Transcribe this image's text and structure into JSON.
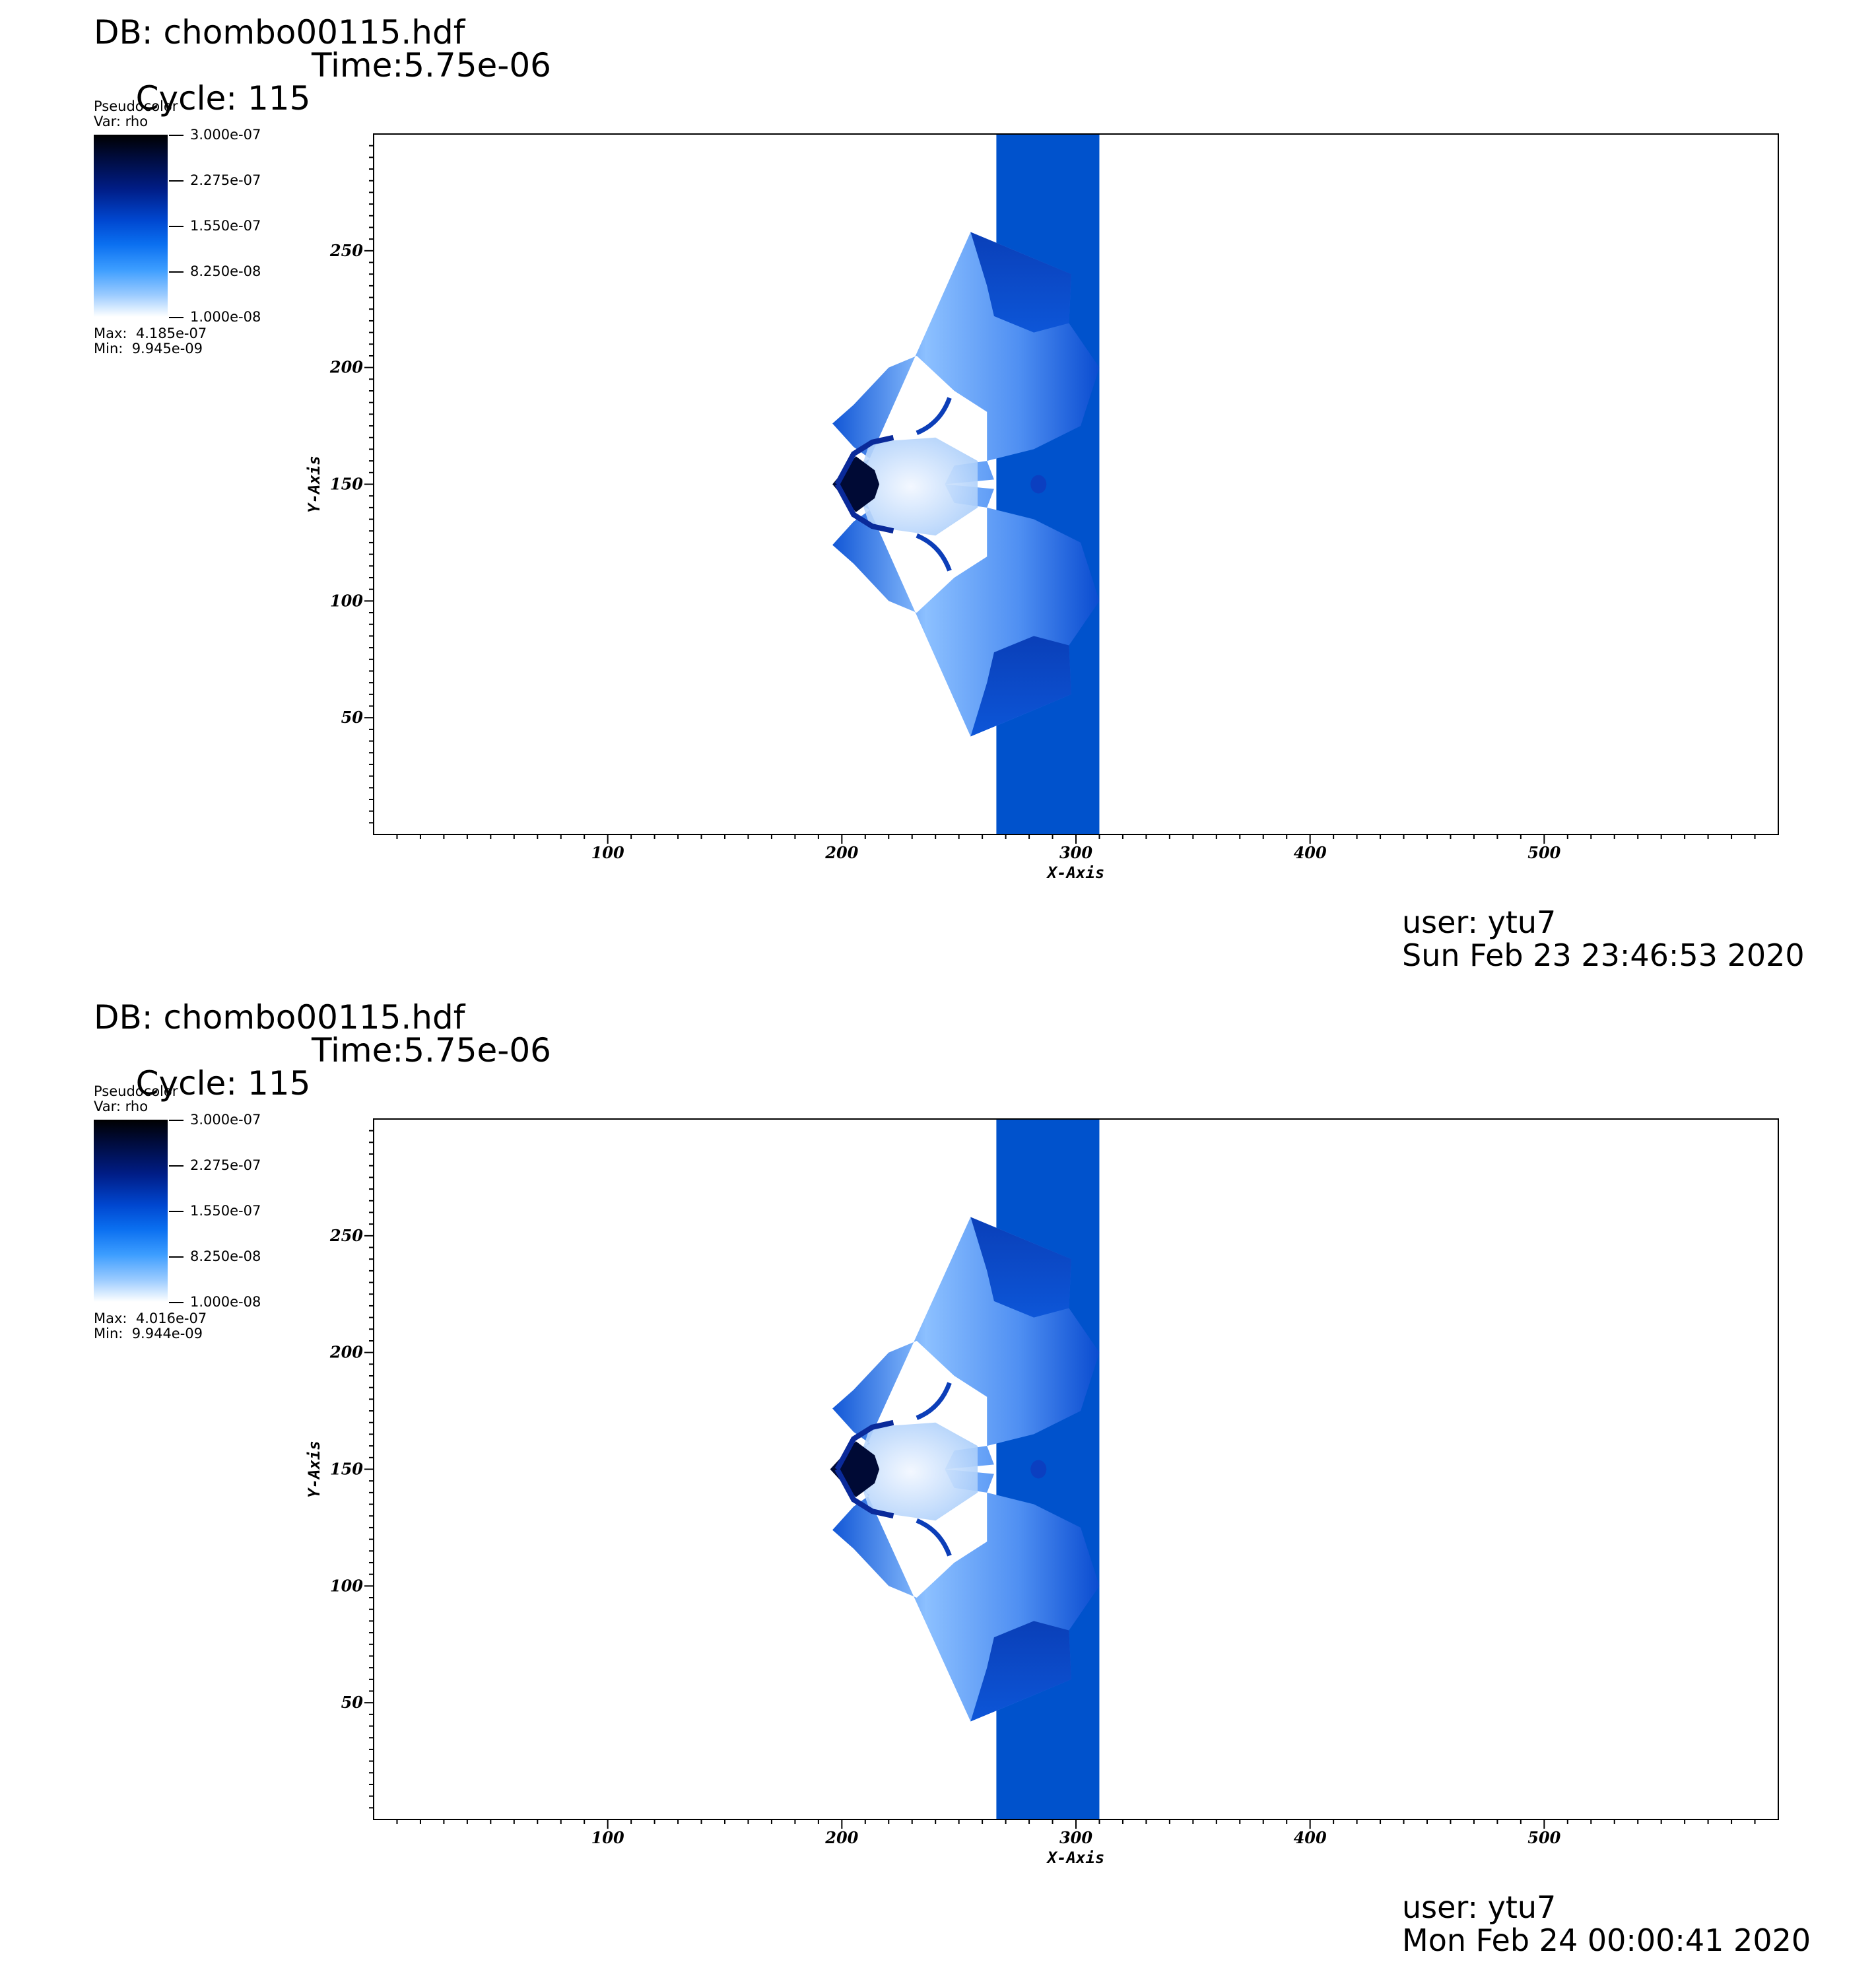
{
  "panels": [
    {
      "db": "DB: chombo00115.hdf",
      "cycle": "Cycle: 115",
      "time": "Time:5.75e-06",
      "legend": {
        "plot_type": "Pseudocolor",
        "var": "Var: rho",
        "ticks": [
          "3.000e-07",
          "2.275e-07",
          "1.550e-07",
          "8.250e-08",
          "1.000e-08"
        ],
        "max": "Max:  4.185e-07",
        "min": "Min:  9.945e-09"
      },
      "user": "user: ytu7",
      "date": "Sun Feb 23 23:46:53 2020"
    },
    {
      "db": "DB: chombo00115.hdf",
      "cycle": "Cycle: 115",
      "time": "Time:5.75e-06",
      "legend": {
        "plot_type": "Pseudocolor",
        "var": "Var: rho",
        "ticks": [
          "3.000e-07",
          "2.275e-07",
          "1.550e-07",
          "8.250e-08",
          "1.000e-08"
        ],
        "max": "Max:  4.016e-07",
        "min": "Min:  9.944e-09"
      },
      "user": "user: ytu7",
      "date": "Mon Feb 24 00:00:41 2020"
    }
  ],
  "chart_data": [
    {
      "type": "heatmap",
      "variable": "rho",
      "xlabel": "X-Axis",
      "ylabel": "Y-Axis",
      "xlim": [
        0,
        600
      ],
      "ylim": [
        0,
        300
      ],
      "xticks": [
        100,
        200,
        300,
        400,
        500
      ],
      "yticks": [
        50,
        100,
        150,
        200,
        250
      ],
      "colorbar_range": [
        1e-08,
        3e-07
      ],
      "colormap": [
        "#ffffff",
        "#3c9dff",
        "#0047d0",
        "#001d87",
        "#000000"
      ],
      "slab": {
        "x": [
          266,
          310
        ],
        "color": "#0052cc"
      },
      "upper_lobe": [
        [
          255,
          258
        ],
        [
          298,
          240
        ],
        [
          297,
          219
        ],
        [
          310,
          200
        ],
        [
          302,
          175
        ],
        [
          282,
          165
        ],
        [
          262,
          160
        ],
        [
          248,
          158
        ],
        [
          244,
          150
        ],
        [
          265,
          152
        ],
        [
          262,
          160
        ],
        [
          262,
          181
        ],
        [
          248,
          190
        ],
        [
          232,
          205
        ],
        [
          220,
          200
        ],
        [
          205,
          184
        ],
        [
          196,
          176
        ],
        [
          205,
          166
        ],
        [
          212,
          161
        ],
        [
          205,
          157
        ],
        [
          207,
          150
        ]
      ],
      "lower_lobe": [
        [
          255,
          42
        ],
        [
          298,
          60
        ],
        [
          297,
          81
        ],
        [
          310,
          100
        ],
        [
          302,
          125
        ],
        [
          282,
          135
        ],
        [
          262,
          140
        ],
        [
          248,
          142
        ],
        [
          244,
          150
        ],
        [
          265,
          148
        ],
        [
          262,
          140
        ],
        [
          262,
          119
        ],
        [
          248,
          110
        ],
        [
          232,
          95
        ],
        [
          220,
          100
        ],
        [
          205,
          116
        ],
        [
          196,
          124
        ],
        [
          205,
          134
        ],
        [
          212,
          139
        ],
        [
          205,
          143
        ],
        [
          207,
          150
        ]
      ],
      "core": [
        [
          212,
          168
        ],
        [
          240,
          170
        ],
        [
          258,
          160
        ],
        [
          258,
          140
        ],
        [
          240,
          128
        ],
        [
          212,
          132
        ],
        [
          206,
          150
        ]
      ],
      "dark_front": [
        [
          196,
          150
        ],
        [
          206,
          162
        ],
        [
          214,
          156
        ],
        [
          216,
          150
        ],
        [
          214,
          144
        ],
        [
          206,
          138
        ]
      ]
    },
    {
      "type": "heatmap",
      "variable": "rho",
      "xlabel": "X-Axis",
      "ylabel": "Y-Axis",
      "xlim": [
        0,
        600
      ],
      "ylim": [
        0,
        300
      ],
      "xticks": [
        100,
        200,
        300,
        400,
        500
      ],
      "yticks": [
        50,
        100,
        150,
        200,
        250
      ],
      "colorbar_range": [
        1e-08,
        3e-07
      ],
      "colormap": [
        "#ffffff",
        "#3c9dff",
        "#0047d0",
        "#001d87",
        "#000000"
      ],
      "slab": {
        "x": [
          266,
          310
        ],
        "color": "#0052cc"
      },
      "upper_lobe": [
        [
          255,
          258
        ],
        [
          298,
          240
        ],
        [
          297,
          219
        ],
        [
          310,
          200
        ],
        [
          302,
          175
        ],
        [
          282,
          165
        ],
        [
          262,
          160
        ],
        [
          248,
          158
        ],
        [
          244,
          150
        ],
        [
          265,
          152
        ],
        [
          262,
          160
        ],
        [
          262,
          181
        ],
        [
          248,
          190
        ],
        [
          232,
          205
        ],
        [
          220,
          200
        ],
        [
          205,
          184
        ],
        [
          196,
          176
        ],
        [
          205,
          166
        ],
        [
          212,
          161
        ],
        [
          205,
          157
        ],
        [
          206,
          150
        ]
      ],
      "lower_lobe": [
        [
          255,
          42
        ],
        [
          298,
          60
        ],
        [
          297,
          81
        ],
        [
          310,
          100
        ],
        [
          302,
          125
        ],
        [
          282,
          135
        ],
        [
          262,
          140
        ],
        [
          248,
          142
        ],
        [
          244,
          150
        ],
        [
          265,
          148
        ],
        [
          262,
          140
        ],
        [
          262,
          119
        ],
        [
          248,
          110
        ],
        [
          232,
          95
        ],
        [
          220,
          100
        ],
        [
          205,
          116
        ],
        [
          196,
          124
        ],
        [
          205,
          134
        ],
        [
          212,
          139
        ],
        [
          205,
          143
        ],
        [
          206,
          150
        ]
      ],
      "core": [
        [
          212,
          168
        ],
        [
          240,
          170
        ],
        [
          258,
          160
        ],
        [
          258,
          140
        ],
        [
          240,
          128
        ],
        [
          212,
          132
        ],
        [
          206,
          150
        ]
      ],
      "dark_front": [
        [
          195,
          150
        ],
        [
          206,
          162
        ],
        [
          214,
          156
        ],
        [
          216,
          150
        ],
        [
          214,
          144
        ],
        [
          206,
          138
        ]
      ]
    }
  ]
}
